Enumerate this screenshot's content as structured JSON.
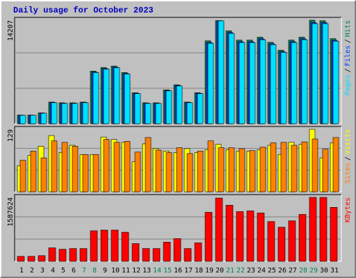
{
  "chart_data": {
    "type": "bar",
    "title": "Daily usage for October 2023",
    "categories": [
      "1",
      "2",
      "3",
      "4",
      "5",
      "6",
      "7",
      "8",
      "9",
      "10",
      "11",
      "12",
      "13",
      "14",
      "15",
      "16",
      "17",
      "18",
      "19",
      "20",
      "21",
      "22",
      "23",
      "24",
      "25",
      "26",
      "27",
      "28",
      "29",
      "30",
      "31"
    ],
    "label_colors": [
      "#000000",
      "#000000",
      "#000000",
      "#000000",
      "#000000",
      "#000000",
      "#00805c",
      "#00805c",
      "#000000",
      "#000000",
      "#000000",
      "#000000",
      "#000000",
      "#00805c",
      "#00805c",
      "#000000",
      "#000000",
      "#000000",
      "#000000",
      "#000000",
      "#00805c",
      "#00805c",
      "#000000",
      "#000000",
      "#000000",
      "#000000",
      "#000000",
      "#00805c",
      "#00805c",
      "#000000",
      "#000000"
    ],
    "legend_separator": "/",
    "grid": true,
    "panels": [
      {
        "ylim": [
          0,
          14207
        ],
        "yticks": [
          14207
        ],
        "series": [
          {
            "name": "Hits",
            "color": "#00805c",
            "values": [
              1190,
              1190,
              1490,
              2970,
              2870,
              2870,
              2970,
              7220,
              7710,
              7910,
              7020,
              4250,
              2870,
              2870,
              4640,
              5340,
              2970,
              4250,
              11370,
              14150,
              12750,
              11470,
              11470,
              11870,
              11170,
              10090,
              11470,
              11870,
              14207,
              14130,
              11670
            ]
          },
          {
            "name": "Files",
            "color": "#0040ff",
            "values": [
              1165,
              1165,
              1455,
              2910,
              2810,
              2810,
              2910,
              7080,
              7560,
              7760,
              6880,
              4170,
              2810,
              2810,
              4560,
              5240,
              2910,
              4170,
              11150,
              14130,
              12510,
              11250,
              11250,
              11640,
              10960,
              9890,
              11250,
              11640,
              13870,
              13870,
              11440
            ]
          },
          {
            "name": "Pages",
            "color": "#00e0ff",
            "values": [
              1152,
              1152,
              1440,
              2880,
              2784,
              2784,
              2880,
              7008,
              7488,
              7680,
              6816,
              4128,
              2784,
              2784,
              4512,
              5184,
              2880,
              4128,
              11040,
              14112,
              12384,
              11136,
              11136,
              11520,
              10848,
              9792,
              11136,
              11520,
              13728,
              13728,
              11328
            ]
          }
        ]
      },
      {
        "ylim": [
          0,
          129
        ],
        "yticks": [
          129
        ],
        "series": [
          {
            "name": "Visits",
            "color": "#ffff00",
            "values": [
              54,
              75,
              94,
              116,
              81,
              96,
              77,
              77,
              113,
              108,
              102,
              62,
              99,
              89,
              84,
              81,
              89,
              81,
              87,
              98,
              87,
              84,
              84,
              87,
              96,
              77,
              102,
              98,
              129,
              70,
              101
            ]
          },
          {
            "name": "Sites",
            "color": "#ff8000",
            "values": [
              65,
              84,
              70,
              105,
              102,
              94,
              77,
              77,
              108,
              102,
              104,
              82,
              112,
              86,
              81,
              91,
              79,
              84,
              105,
              91,
              91,
              89,
              85,
              92,
              101,
              102,
              96,
              103,
              109,
              88,
              112
            ]
          }
        ]
      },
      {
        "ylim": [
          0,
          1587624
        ],
        "yticks": [
          1587624
        ],
        "series": [
          {
            "name": "KBytes",
            "color": "#ff0000",
            "values": [
              123480,
              123480,
              141120,
              335160,
              299880,
              317520,
              317520,
              758520,
              776160,
              776160,
              723240,
              441000,
              317520,
              317520,
              476280,
              564480,
              317520,
              458640,
              1217160,
              1569960,
              1393560,
              1234800,
              1252440,
              1199520,
              987840,
              846720,
              1005480,
              1164240,
              1587624,
              1587624,
              1340640
            ]
          }
        ]
      }
    ]
  }
}
